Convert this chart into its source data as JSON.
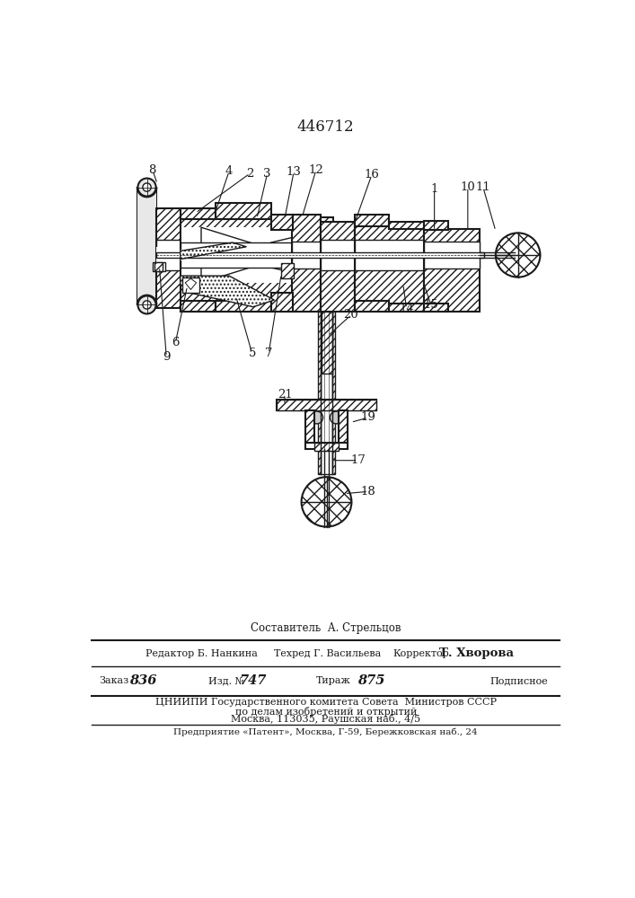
{
  "patent_number": "446712",
  "footer": {
    "line1_composer": "Составитель  А. Стрельцов",
    "line2_editor": "Редактор Б. Нанкина",
    "line2_techred": "Техред Г. Васильева",
    "line2_corrector": "КорректорТ. Хворова",
    "line3_order_label": "Заказ",
    "line3_order_val": "836",
    "line3_izd_label": "Изд. №",
    "line3_izd_val": "747",
    "line3_tirazh_label": "Тираж",
    "line3_tirazh_val": "875",
    "line3_podp": "Подписное",
    "line4": "ЦНИИПИ Государственного комитета Совета  Министров СССР",
    "line5": "по делам изобретений и открытий",
    "line6": "Москва, 113035, Раушская наб., 4/5",
    "line7": "Предприятие «Патент», Москва, Г-59, Бережковская наб., 24"
  },
  "bg_color": "#ffffff",
  "line_color": "#1a1a1a"
}
